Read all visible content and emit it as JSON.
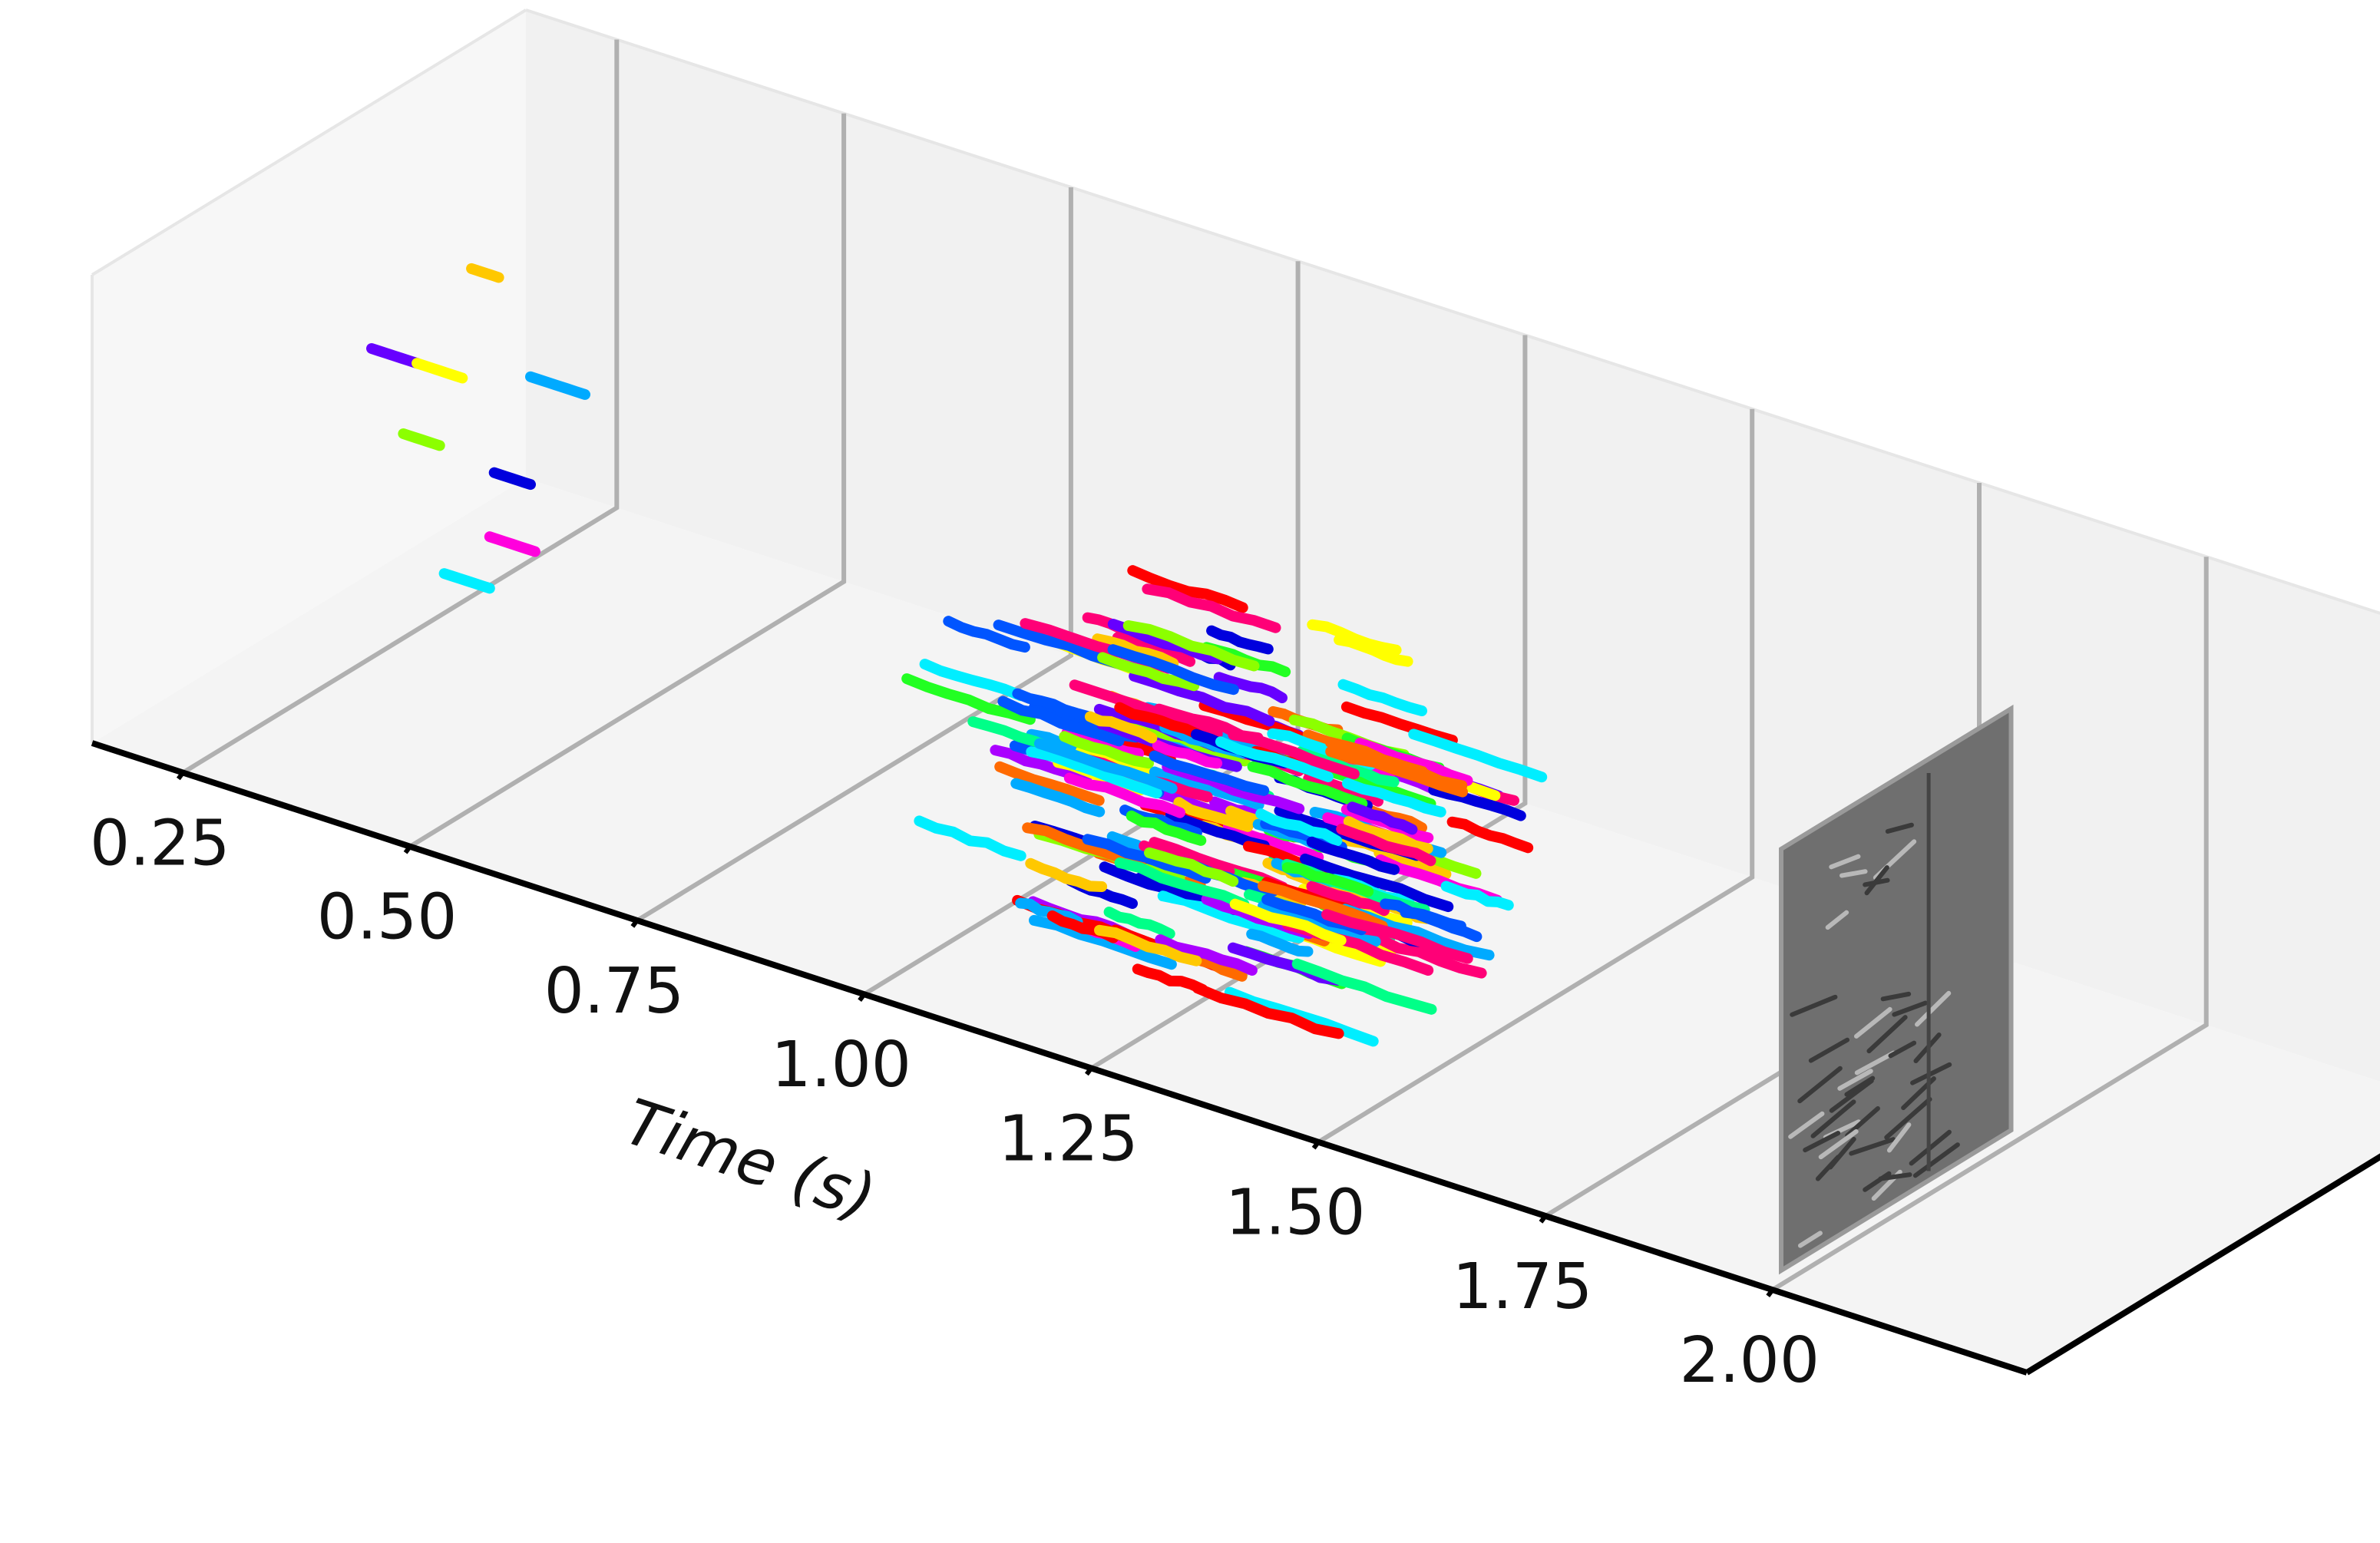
{
  "chart_data": {
    "type": "scatter",
    "subtype": "3d-trajectories",
    "title": "",
    "xlabel": "Time (s)",
    "ylabel": "",
    "zlabel": "",
    "xlim": [
      0.15,
      2.28
    ],
    "x_ticks": [
      "0.25",
      "0.50",
      "0.75",
      "1.00",
      "1.25",
      "1.50",
      "1.75",
      "2.00"
    ],
    "x_tick_values": [
      0.25,
      0.5,
      0.75,
      1.0,
      1.25,
      1.5,
      1.75,
      2.0
    ],
    "grid": true,
    "legend": "none",
    "pane_color": "#f1f1f1",
    "gridline_color": "#b0b0b0",
    "image_plane_at_time": 2.0,
    "track_colors": [
      "#ff0000",
      "#ff6a00",
      "#ffc800",
      "#ffff00",
      "#8cff00",
      "#22ff22",
      "#00ff88",
      "#00eeff",
      "#00aaff",
      "#0055ff",
      "#0000dd",
      "#6600ff",
      "#aa00ff",
      "#ff00dd",
      "#ff0077"
    ],
    "early_tracks": [
      {
        "t": 0.32,
        "v": 0.8,
        "len": 0.03,
        "color": "#ffc800"
      },
      {
        "t": 0.22,
        "v": 0.56,
        "len": 0.05,
        "color": "#6600ff"
      },
      {
        "t": 0.27,
        "v": 0.56,
        "len": 0.05,
        "color": "#ffff00"
      },
      {
        "t": 0.4,
        "v": 0.61,
        "len": 0.06,
        "color": "#00aaff"
      },
      {
        "t": 0.25,
        "v": 0.4,
        "len": 0.04,
        "color": "#8cff00"
      },
      {
        "t": 0.35,
        "v": 0.38,
        "len": 0.04,
        "color": "#0000dd"
      },
      {
        "t": 0.35,
        "v": 0.24,
        "len": 0.05,
        "color": "#ff00dd"
      },
      {
        "t": 0.3,
        "v": 0.13,
        "len": 0.05,
        "color": "#00eeff"
      }
    ],
    "dense_cluster": {
      "t_range": [
        1.0,
        1.35
      ],
      "v_range": [
        0.0,
        0.65
      ],
      "track_count": 150,
      "seed": 7
    },
    "secondary_cluster": {
      "t_range": [
        1.3,
        1.5
      ],
      "v_range": [
        0.1,
        0.6
      ],
      "track_count": 45,
      "seed": 13
    }
  }
}
